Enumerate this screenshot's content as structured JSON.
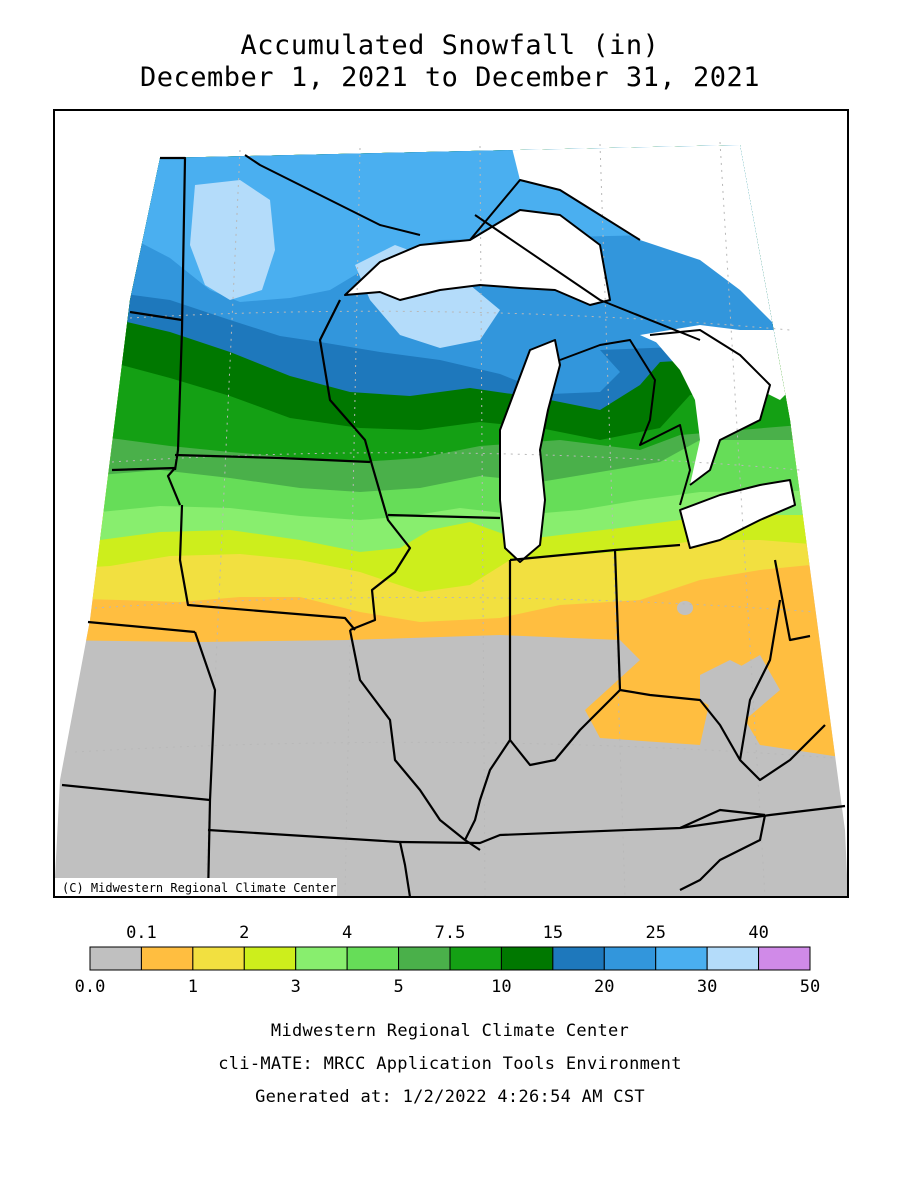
{
  "title_line1": "Accumulated Snowfall (in)",
  "title_line2": "December 1, 2021 to December 31, 2021",
  "copyright": "(C) Midwestern Regional Climate Center",
  "legend": {
    "upper_labels": [
      "0.1",
      "2",
      "4",
      "7.5",
      "15",
      "25",
      "40"
    ],
    "lower_labels": [
      "0.0",
      "1",
      "3",
      "5",
      "10",
      "20",
      "30",
      "50"
    ],
    "bins": [
      {
        "label": "0.0–0.1",
        "color": "#c0c0c0"
      },
      {
        "label": "0.1–1",
        "color": "#ffbe40"
      },
      {
        "label": "1–2",
        "color": "#f2e040"
      },
      {
        "label": "2–3",
        "color": "#cdee1c"
      },
      {
        "label": "3–4",
        "color": "#88ee6e"
      },
      {
        "label": "4–5",
        "color": "#66dd58"
      },
      {
        "label": "5–7.5",
        "color": "#4ab04a"
      },
      {
        "label": "7.5–10",
        "color": "#14a014"
      },
      {
        "label": "10–15",
        "color": "#007800"
      },
      {
        "label": "15–20",
        "color": "#1e78bc"
      },
      {
        "label": "20–25",
        "color": "#3296dc"
      },
      {
        "label": "25–30",
        "color": "#4aaff0"
      },
      {
        "label": "30–40",
        "color": "#b4dcfa"
      },
      {
        "label": "40–50",
        "color": "#d08ae8"
      }
    ]
  },
  "footer": {
    "line1": "Midwestern Regional Climate Center",
    "line2": "cli-MATE: MRCC Application Tools Environment",
    "line3": "Generated at: 1/2/2022 4:26:54 AM CST"
  }
}
